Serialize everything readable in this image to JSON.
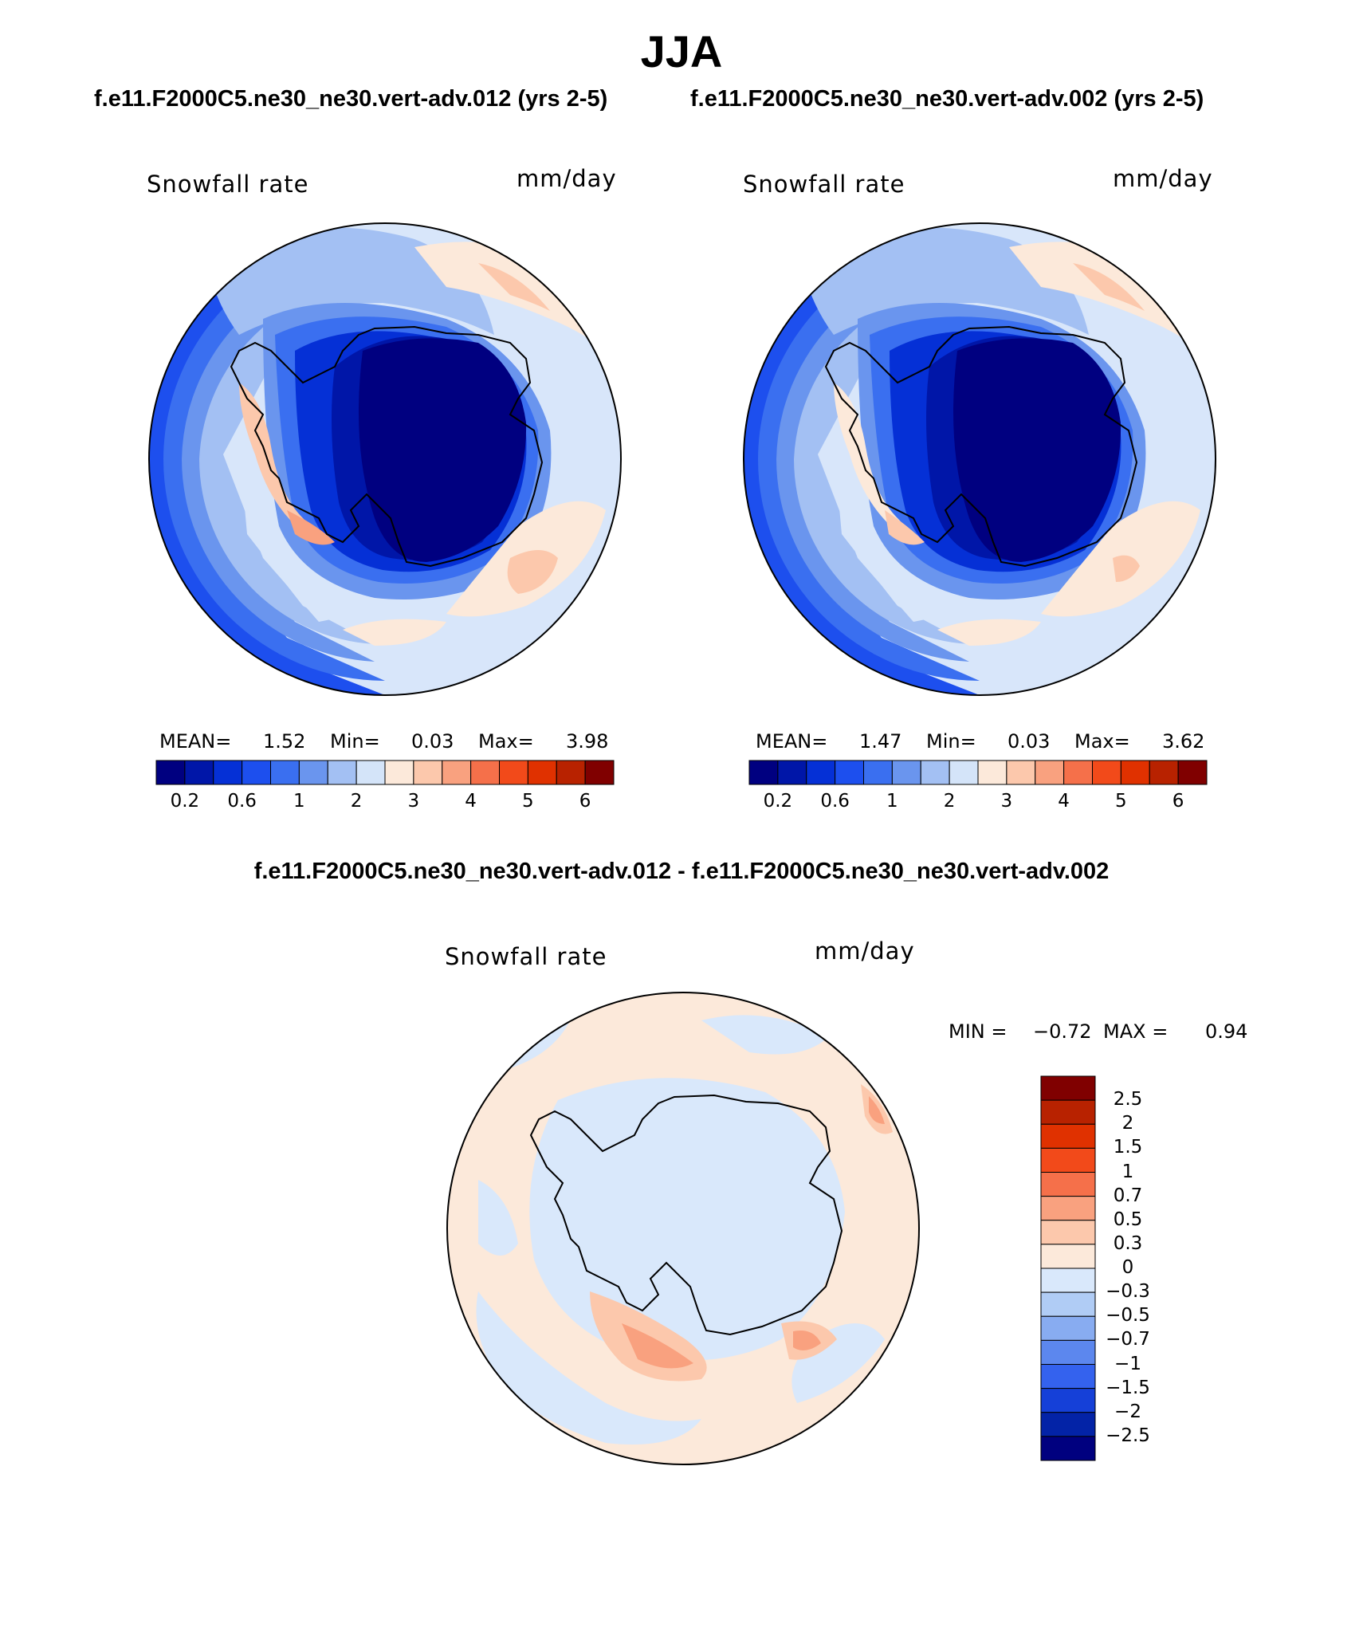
{
  "season": "JJA",
  "case_left": "f.e11.F2000C5.ne30_ne30.vert-adv.012 (yrs 2-5)",
  "case_right": "f.e11.F2000C5.ne30_ne30.vert-adv.002 (yrs 2-5)",
  "diff_title": "f.e11.F2000C5.ne30_ne30.vert-adv.012 - f.e11.F2000C5.ne30_ne30.vert-adv.002",
  "panels": [
    {
      "variable": "Snowfall rate",
      "units": "mm/day",
      "mean_label": "MEAN=",
      "mean": "1.52",
      "min_label": "Min=",
      "min": "0.03",
      "max_label": "Max=",
      "max": "3.98"
    },
    {
      "variable": "Snowfall rate",
      "units": "mm/day",
      "mean_label": "MEAN=",
      "mean": "1.47",
      "min_label": "Min=",
      "min": "0.03",
      "max_label": "Max=",
      "max": "3.62"
    }
  ],
  "diff_panel": {
    "variable": "Snowfall rate",
    "units": "mm/day",
    "min_label": "MIN =",
    "min": "−0.72",
    "max_label": "MAX =",
    "max": "0.94"
  },
  "colorbar_field": {
    "labels": [
      "0.2",
      "0.6",
      "1",
      "2",
      "3",
      "4",
      "5",
      "6"
    ],
    "colors": [
      "#000080",
      "#0016a8",
      "#0530d6",
      "#1d4fee",
      "#3a6ff0",
      "#6a95ee",
      "#a3c0f3",
      "#d4e4f9",
      "#fce9da",
      "#fcc8ac",
      "#f9a17f",
      "#f5704a",
      "#f24a1a",
      "#e03100",
      "#b82200",
      "#800000"
    ]
  },
  "colorbar_diff": {
    "labels": [
      "2.5",
      "2",
      "1.5",
      "1",
      "0.7",
      "0.5",
      "0.3",
      "0",
      "−0.3",
      "−0.5",
      "−0.7",
      "−1",
      "−1.5",
      "−2",
      "−2.5"
    ],
    "colors": [
      "#800000",
      "#b82200",
      "#e03100",
      "#f24a1a",
      "#f5704a",
      "#f9a17f",
      "#fcc8ac",
      "#fce9da",
      "#d9e8fb",
      "#b0ccf5",
      "#88acf1",
      "#5c87ee",
      "#3462ee",
      "#1540d8",
      "#0323a7",
      "#00007f"
    ]
  }
}
